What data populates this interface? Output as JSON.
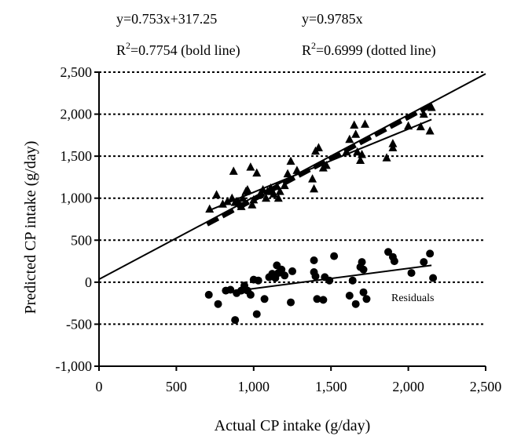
{
  "chart_data": {
    "type": "scatter",
    "xlabel": "Actual CP intake (g/day)",
    "ylabel": "Predicted CP intake (g/day)",
    "xlim": [
      0,
      2500
    ],
    "ylim": [
      -1000,
      2500
    ],
    "x_ticks": [
      "0",
      "500",
      "1,000",
      "1,500",
      "2,000",
      "2,500"
    ],
    "y_ticks": [
      "2,500",
      "2,000",
      "1,500",
      "1,000",
      "500",
      "0",
      "-500",
      "-1,000"
    ],
    "x_tick_values": [
      0,
      500,
      1000,
      1500,
      2000,
      2500
    ],
    "y_tick_values": [
      2500,
      2000,
      1500,
      1000,
      500,
      0,
      -500,
      -1000
    ],
    "grid": "horizontal dotted",
    "annotations": {
      "eq1": "y=0.753x+317.25",
      "eq2": "y=0.9785x",
      "r1_prefix": "R",
      "r1_sup": "2",
      "r1_rest": "=0.7754 (bold line)",
      "r2_prefix": "R",
      "r2_sup": "2",
      "r2_rest": "=0.6999 (dotted line)",
      "residuals_label": "Residuals"
    },
    "series": [
      {
        "marker": "triangle",
        "points": [
          [
            715,
            870
          ],
          [
            760,
            1040
          ],
          [
            800,
            930
          ],
          [
            830,
            960
          ],
          [
            860,
            1000
          ],
          [
            870,
            1320
          ],
          [
            880,
            950
          ],
          [
            900,
            960
          ],
          [
            920,
            900
          ],
          [
            930,
            1000
          ],
          [
            950,
            1080
          ],
          [
            960,
            1100
          ],
          [
            980,
            1370
          ],
          [
            990,
            920
          ],
          [
            1000,
            980
          ],
          [
            1020,
            1300
          ],
          [
            1040,
            1040
          ],
          [
            1060,
            1100
          ],
          [
            1080,
            1000
          ],
          [
            1090,
            1080
          ],
          [
            1110,
            1120
          ],
          [
            1120,
            1080
          ],
          [
            1130,
            1050
          ],
          [
            1150,
            1140
          ],
          [
            1160,
            1000
          ],
          [
            1170,
            1080
          ],
          [
            1200,
            1150
          ],
          [
            1220,
            1290
          ],
          [
            1240,
            1440
          ],
          [
            1280,
            1330
          ],
          [
            1380,
            1230
          ],
          [
            1390,
            1110
          ],
          [
            1400,
            1560
          ],
          [
            1420,
            1600
          ],
          [
            1450,
            1360
          ],
          [
            1470,
            1390
          ],
          [
            1600,
            1550
          ],
          [
            1620,
            1700
          ],
          [
            1650,
            1870
          ],
          [
            1660,
            1760
          ],
          [
            1670,
            1550
          ],
          [
            1690,
            1450
          ],
          [
            1700,
            1520
          ],
          [
            1720,
            1880
          ],
          [
            1860,
            1480
          ],
          [
            1900,
            1600
          ],
          [
            1900,
            1650
          ],
          [
            2000,
            1860
          ],
          [
            2080,
            1850
          ],
          [
            2100,
            2000
          ],
          [
            2140,
            1800
          ],
          [
            2150,
            2080
          ]
        ]
      },
      {
        "marker": "circle",
        "points": [
          [
            710,
            -150
          ],
          [
            770,
            -260
          ],
          [
            820,
            -100
          ],
          [
            850,
            -90
          ],
          [
            880,
            -450
          ],
          [
            890,
            -130
          ],
          [
            920,
            -100
          ],
          [
            940,
            -40
          ],
          [
            960,
            -100
          ],
          [
            980,
            -150
          ],
          [
            1000,
            30
          ],
          [
            1020,
            -380
          ],
          [
            1030,
            20
          ],
          [
            1070,
            -200
          ],
          [
            1100,
            60
          ],
          [
            1120,
            100
          ],
          [
            1140,
            50
          ],
          [
            1150,
            200
          ],
          [
            1160,
            110
          ],
          [
            1180,
            150
          ],
          [
            1200,
            80
          ],
          [
            1240,
            -240
          ],
          [
            1250,
            130
          ],
          [
            1390,
            260
          ],
          [
            1390,
            120
          ],
          [
            1400,
            70
          ],
          [
            1410,
            -200
          ],
          [
            1450,
            -210
          ],
          [
            1460,
            60
          ],
          [
            1490,
            20
          ],
          [
            1520,
            310
          ],
          [
            1620,
            -160
          ],
          [
            1640,
            20
          ],
          [
            1660,
            -260
          ],
          [
            1690,
            180
          ],
          [
            1700,
            240
          ],
          [
            1710,
            150
          ],
          [
            1710,
            -120
          ],
          [
            1730,
            -200
          ],
          [
            1870,
            360
          ],
          [
            1900,
            300
          ],
          [
            1910,
            250
          ],
          [
            2020,
            110
          ],
          [
            2100,
            240
          ],
          [
            2140,
            340
          ],
          [
            2160,
            50
          ]
        ]
      }
    ],
    "lines": [
      {
        "style": "solid",
        "x": [
          0,
          2500
        ],
        "y": [
          35,
          2480
        ]
      },
      {
        "style": "dashed-bold",
        "x": [
          700,
          2150
        ],
        "y": [
          685,
          2104
        ]
      },
      {
        "style": "solid",
        "x": [
          700,
          2150
        ],
        "y": [
          845,
          1936
        ]
      },
      {
        "style": "solid",
        "x": [
          900,
          2150
        ],
        "y": [
          -100,
          200
        ]
      }
    ]
  }
}
